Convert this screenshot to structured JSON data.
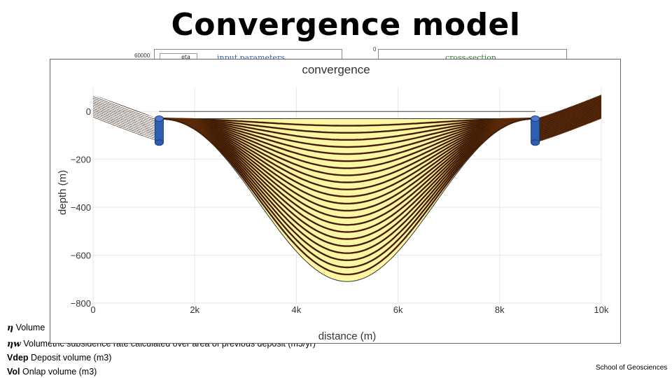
{
  "slide": {
    "title": "Convergence model",
    "footer": "School of Geosciences"
  },
  "background_plots": {
    "left_tick": "60000",
    "left_legend": "eta",
    "left_title": "input parameters",
    "right_tick": "0",
    "right_title": "cross-section"
  },
  "definitions": [
    {
      "symbol": "η",
      "text": "Volume"
    },
    {
      "symbol": "ηw",
      "text": "Volumetric subsidence rate calculated over area of previous deposit (m3/yr)"
    },
    {
      "symbol": "Vdep",
      "text": "Deposit volume (m3)"
    },
    {
      "symbol": "Vol",
      "text": "Onlap volume (m3)"
    }
  ],
  "colors": {
    "fill_yellow": "#fdf6a2",
    "layer_brown": "#5a2a0a",
    "marker_blue": "#2f5fb0"
  },
  "chart_data": {
    "type": "line",
    "title": "convergence",
    "xlabel": "distance (m)",
    "ylabel": "depth (m)",
    "xlim": [
      0,
      10000
    ],
    "ylim": [
      -800,
      100
    ],
    "x_ticks": [
      0,
      2000,
      4000,
      6000,
      8000,
      10000
    ],
    "x_tick_labels": [
      "0",
      "2k",
      "4k",
      "6k",
      "8k",
      "10k"
    ],
    "y_ticks": [
      0,
      -200,
      -400,
      -600,
      -800
    ],
    "y_tick_labels": [
      "0",
      "−200",
      "−400",
      "−600",
      "−800"
    ],
    "grid": true,
    "water_level": 0,
    "basin_fill_top": -30,
    "basin_max_depth": -710,
    "basin_center_x": 5000,
    "onlap_markers": [
      {
        "x": 1300,
        "y_top": -30,
        "y_bottom": -130
      },
      {
        "x": 8700,
        "y_top": -30,
        "y_bottom": -130
      }
    ],
    "layer_count": 23,
    "flank_top_edge": 70,
    "flank_bottom_edge": -30
  }
}
